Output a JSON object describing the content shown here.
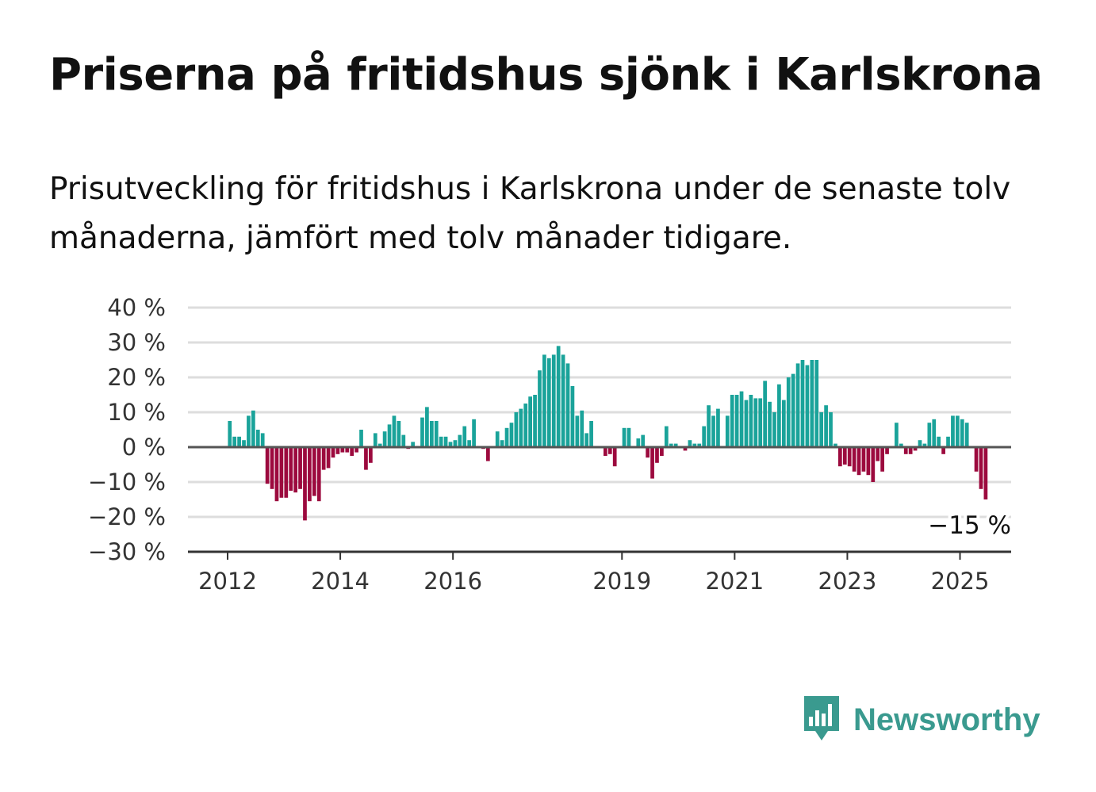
{
  "title": "Priserna på fritidshus sjönk i Karlskrona",
  "subtitle": "Prisutveckling för fritidshus i Karlskrona under de senaste tolv månaderna, jämfört med tolv månader tidigare.",
  "brand": {
    "name": "Newsworthy",
    "icon": "newsworthy-logo-icon",
    "color": "#3a9a8f"
  },
  "chart_data": {
    "type": "bar",
    "title": "",
    "xlabel": "",
    "ylabel": "",
    "ylim": [
      -30,
      40
    ],
    "yticks": [
      40,
      30,
      20,
      10,
      0,
      -10,
      -20,
      -30
    ],
    "ytick_labels": [
      "40 %",
      "30 %",
      "20 %",
      "10 %",
      "0 %",
      "−10 %",
      "−20 %",
      "−30 %"
    ],
    "xticks": [
      2012,
      2014,
      2016,
      2019,
      2021,
      2023,
      2025
    ],
    "xtick_labels": [
      "2012",
      "2014",
      "2016",
      "2019",
      "2021",
      "2023",
      "2025"
    ],
    "grid": true,
    "positive_color": "#1aa39a",
    "negative_color": "#9c0a3e",
    "x_start": "2012-01",
    "x_end": "2025-04",
    "frequency": "monthly",
    "values": [
      7.5,
      3,
      3,
      2,
      9,
      10.5,
      5,
      4,
      -10.5,
      -12,
      -15.5,
      -14.5,
      -14.5,
      -12.5,
      -13,
      -12,
      -21,
      -15.5,
      -14,
      -15.5,
      -6.5,
      -6,
      -3,
      -2,
      -1.5,
      -1.5,
      -2.5,
      -1.5,
      5,
      -6.5,
      -4.5,
      4,
      1,
      4.5,
      6.5,
      9,
      7.5,
      3.5,
      -0.5,
      1.5,
      0,
      8.5,
      11.5,
      7.5,
      7.5,
      3,
      3,
      1.5,
      2,
      3.5,
      6,
      2,
      8,
      0,
      -0.5,
      -4,
      0,
      4.5,
      2,
      5.5,
      7,
      10,
      11,
      12.5,
      14.5,
      15,
      22,
      26.5,
      25.5,
      26.5,
      29,
      26.5,
      24,
      17.5,
      9,
      10.5,
      4,
      7.5,
      0,
      0,
      -2.5,
      -2,
      -5.5,
      0,
      5.5,
      5.5,
      0,
      2.5,
      3.5,
      -3,
      -9,
      -4.5,
      -2.5,
      6,
      1,
      1,
      0,
      -1,
      2,
      1,
      1,
      6,
      12,
      9,
      11,
      0,
      9,
      15,
      15,
      16,
      13.5,
      15,
      14,
      14,
      19,
      13,
      10,
      18,
      13.5,
      20,
      21,
      24,
      25,
      23.5,
      25,
      25,
      10,
      12,
      10,
      1,
      -5.5,
      -5,
      -5.5,
      -7,
      -8,
      -7,
      -8,
      -10,
      -4,
      -7,
      -2,
      0,
      7,
      1,
      -2,
      -2,
      -1,
      2,
      1,
      7,
      8,
      3,
      -2,
      3,
      9,
      9,
      8,
      7,
      0,
      -7,
      -12,
      -15
    ],
    "annotations": [
      {
        "x": "2025-04",
        "y": -15,
        "label": "−15 %"
      }
    ]
  }
}
